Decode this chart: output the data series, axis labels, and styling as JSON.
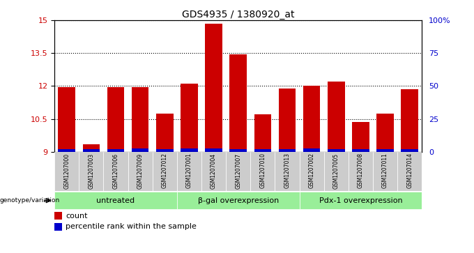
{
  "title": "GDS4935 / 1380920_at",
  "samples": [
    "GSM1207000",
    "GSM1207003",
    "GSM1207006",
    "GSM1207009",
    "GSM1207012",
    "GSM1207001",
    "GSM1207004",
    "GSM1207007",
    "GSM1207010",
    "GSM1207013",
    "GSM1207002",
    "GSM1207005",
    "GSM1207008",
    "GSM1207011",
    "GSM1207014"
  ],
  "count_values": [
    11.95,
    9.35,
    11.95,
    11.95,
    10.75,
    12.1,
    14.85,
    13.45,
    10.7,
    11.9,
    12.0,
    12.2,
    10.35,
    10.75,
    11.85
  ],
  "percentile_heights": [
    0.12,
    0.12,
    0.12,
    0.15,
    0.12,
    0.15,
    0.15,
    0.12,
    0.12,
    0.12,
    0.15,
    0.12,
    0.12,
    0.12,
    0.12
  ],
  "ymin": 9,
  "ymax": 15,
  "yticks": [
    9,
    10.5,
    12,
    13.5,
    15
  ],
  "ytick_labels": [
    "9",
    "10.5",
    "12",
    "13.5",
    "15"
  ],
  "right_yticks_pct": [
    0,
    25,
    50,
    75,
    100
  ],
  "right_ytick_labels": [
    "0",
    "25",
    "50",
    "75",
    "100%"
  ],
  "bar_color": "#cc0000",
  "percentile_color": "#0000cc",
  "bar_width": 0.7,
  "groups": [
    {
      "label": "untreated",
      "start": 0,
      "end": 5
    },
    {
      "label": "β-gal overexpression",
      "start": 5,
      "end": 10
    },
    {
      "label": "Pdx-1 overexpression",
      "start": 10,
      "end": 15
    }
  ],
  "group_color": "#99ee99",
  "xlabel_genotype": "genotype/variation",
  "legend_count": "count",
  "legend_percentile": "percentile rank within the sample",
  "background_color": "#ffffff",
  "xtick_bg": "#cccccc"
}
